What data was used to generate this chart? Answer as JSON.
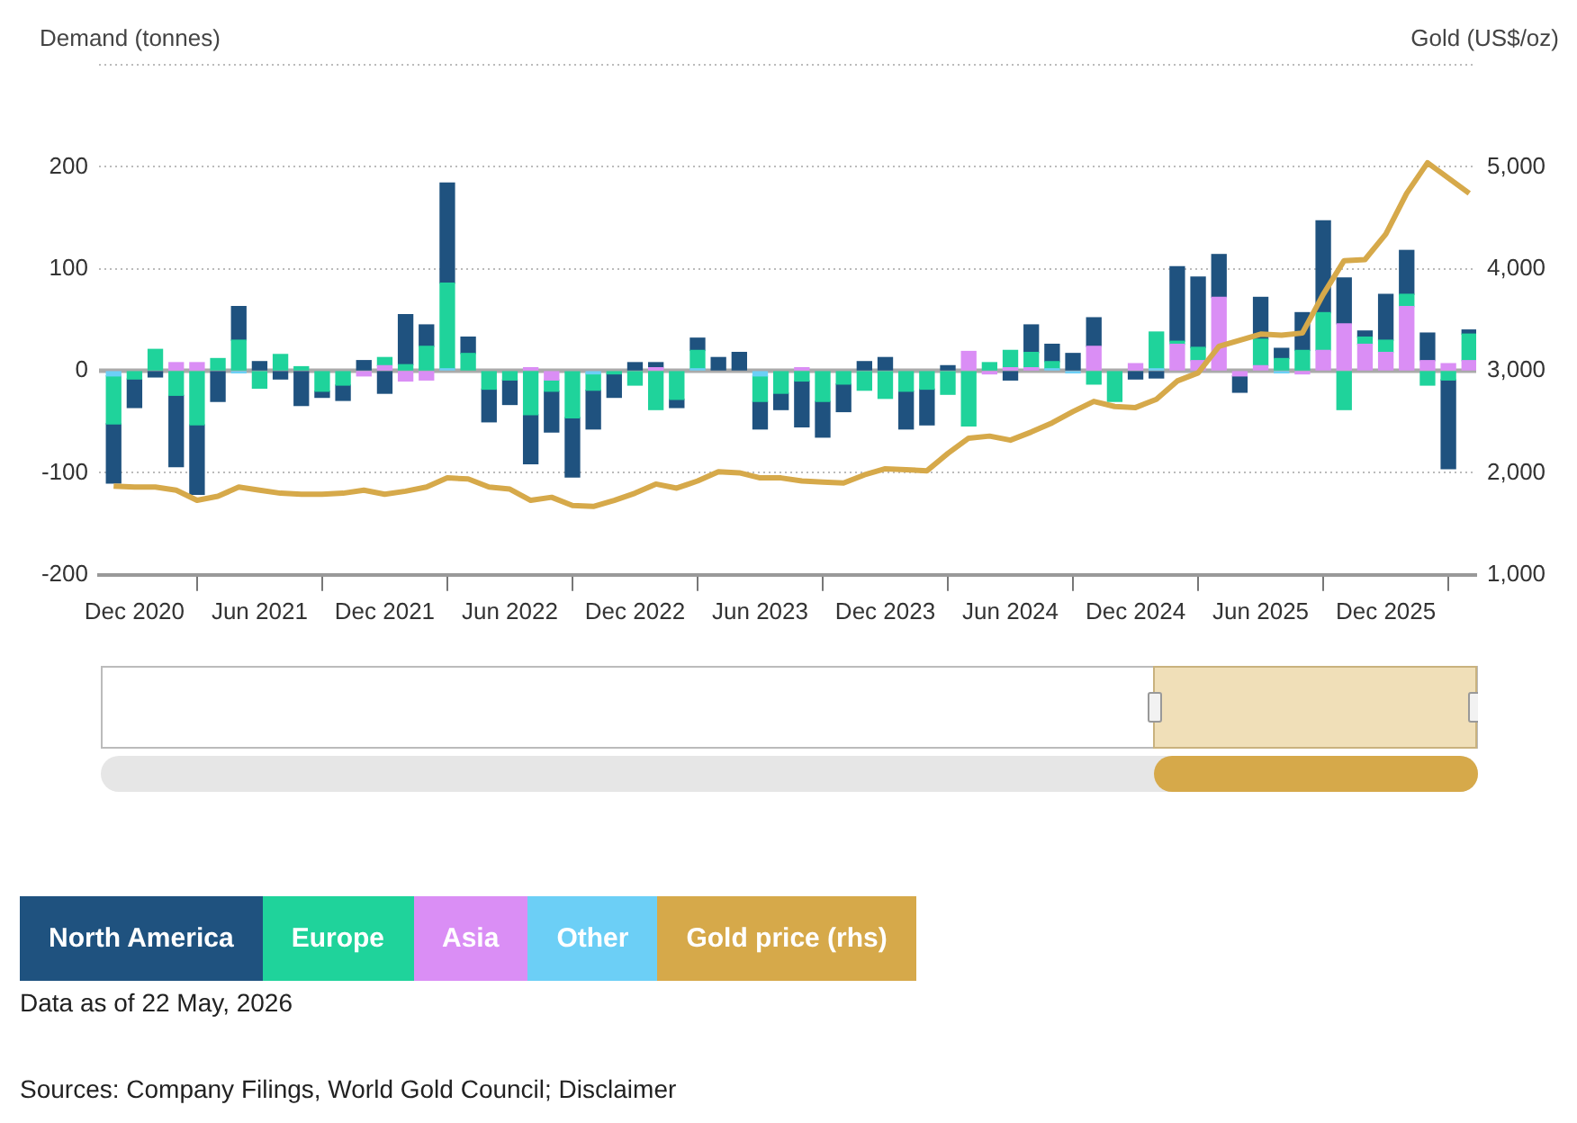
{
  "chart_data": {
    "type": "bar",
    "stacked": true,
    "ylabel": "Demand (tonnes)",
    "y2label": "Gold (US$/oz)",
    "x": [
      "2020-11",
      "2020-12",
      "2021-01",
      "2021-02",
      "2021-03",
      "2021-04",
      "2021-05",
      "2021-06",
      "2021-07",
      "2021-08",
      "2021-09",
      "2021-10",
      "2021-11",
      "2021-12",
      "2022-01",
      "2022-02",
      "2022-03",
      "2022-04",
      "2022-05",
      "2022-06",
      "2022-07",
      "2022-08",
      "2022-09",
      "2022-10",
      "2022-11",
      "2022-12",
      "2023-01",
      "2023-02",
      "2023-03",
      "2023-04",
      "2023-05",
      "2023-06",
      "2023-07",
      "2023-08",
      "2023-09",
      "2023-10",
      "2023-11",
      "2023-12",
      "2024-01",
      "2024-02",
      "2024-03",
      "2024-04",
      "2024-05",
      "2024-06",
      "2024-07",
      "2024-08",
      "2024-09",
      "2024-10",
      "2024-11",
      "2024-12",
      "2025-01",
      "2025-02",
      "2025-03",
      "2025-04",
      "2025-05",
      "2025-06",
      "2025-07",
      "2025-08",
      "2025-09",
      "2025-10",
      "2025-11",
      "2025-12",
      "2026-01",
      "2026-02",
      "2026-03",
      "2026-04"
    ],
    "xlim": [
      "2020-10-10",
      "2026-04-11"
    ],
    "xticks": [
      {
        "value": "2020-12",
        "label": "Dec 2020"
      },
      {
        "value": "2021-06",
        "label": "Jun 2021"
      },
      {
        "value": "2021-12",
        "label": "Dec 2021"
      },
      {
        "value": "2022-06",
        "label": "Jun 2022"
      },
      {
        "value": "2022-12",
        "label": "Dec 2022"
      },
      {
        "value": "2023-06",
        "label": "Jun 2023"
      },
      {
        "value": "2023-12",
        "label": "Dec 2023"
      },
      {
        "value": "2024-06",
        "label": "Jun 2024"
      },
      {
        "value": "2024-12",
        "label": "Dec 2024"
      },
      {
        "value": "2025-06",
        "label": "Jun 2025"
      },
      {
        "value": "2025-12",
        "label": "Dec 2025"
      }
    ],
    "ylim": [
      -200,
      300
    ],
    "yticks": [
      -200,
      -100,
      0,
      100,
      200,
      {
        "value": 300,
        "label": null
      }
    ],
    "y2lim": [
      1000,
      6000
    ],
    "y2ticks": [
      {
        "value": 1000,
        "label": "1,000"
      },
      {
        "value": 2000,
        "label": "2,000"
      },
      {
        "value": 3000,
        "label": "3,000"
      },
      {
        "value": 4000,
        "label": "4,000"
      },
      {
        "value": 5000,
        "label": "5,000"
      },
      {
        "value": 6000,
        "label": null
      }
    ],
    "grid": "y",
    "legend": "bottom",
    "marker": "none",
    "ref_lines": [
      {
        "axis": "y",
        "value": 0,
        "color": "#aaaaaa"
      }
    ],
    "series": [
      {
        "name": "Other",
        "color": "#6ccff6",
        "values": [
          -5,
          0,
          0,
          0,
          0,
          0,
          -2,
          0,
          0,
          0,
          0,
          0,
          0,
          0,
          0,
          0,
          2,
          0,
          0,
          0,
          0,
          0,
          0,
          -3,
          0,
          0,
          0,
          0,
          2,
          0,
          0,
          -5,
          0,
          0,
          0,
          0,
          0,
          0,
          0,
          0,
          0,
          0,
          0,
          0,
          0,
          2,
          -2,
          0,
          0,
          0,
          2,
          0,
          0,
          0,
          0,
          0,
          -2,
          0,
          0,
          0,
          0,
          0,
          0,
          0,
          0,
          0
        ]
      },
      {
        "name": "Asia",
        "color": "#da8ef5",
        "values": [
          0,
          0,
          0,
          8,
          8,
          0,
          0,
          0,
          0,
          0,
          0,
          0,
          -5,
          5,
          -10,
          -9,
          0,
          0,
          0,
          0,
          3,
          -9,
          0,
          0,
          0,
          0,
          3,
          0,
          0,
          0,
          0,
          0,
          0,
          3,
          0,
          0,
          0,
          0,
          0,
          0,
          0,
          19,
          -3,
          3,
          3,
          0,
          0,
          24,
          0,
          7,
          0,
          26,
          10,
          72,
          -5,
          5,
          0,
          -3,
          20,
          46,
          26,
          18,
          63,
          10,
          7,
          10
        ]
      },
      {
        "name": "Europe",
        "color": "#1fd39b",
        "values": [
          -47,
          -8,
          21,
          -24,
          -53,
          12,
          30,
          -17,
          16,
          4,
          -20,
          -14,
          0,
          8,
          6,
          24,
          84,
          17,
          -18,
          -9,
          -43,
          -11,
          -46,
          -16,
          -3,
          -14,
          -38,
          -28,
          18,
          0,
          0,
          -25,
          -22,
          -10,
          -30,
          -13,
          -19,
          -27,
          -20,
          -18,
          -23,
          -54,
          8,
          17,
          15,
          7,
          0,
          -13,
          -30,
          0,
          36,
          3,
          13,
          0,
          0,
          26,
          12,
          20,
          37,
          -38,
          7,
          12,
          12,
          -14,
          -9,
          26
        ]
      },
      {
        "name": "North America",
        "color": "#1f527f",
        "values": [
          -58,
          -28,
          -6,
          -70,
          -68,
          -30,
          33,
          9,
          -8,
          -34,
          -6,
          -15,
          10,
          -22,
          49,
          21,
          98,
          16,
          -32,
          -24,
          -48,
          -40,
          -58,
          -38,
          -23,
          8,
          5,
          -8,
          12,
          13,
          18,
          -27,
          -16,
          -45,
          -35,
          -27,
          9,
          13,
          -37,
          -35,
          5,
          0,
          0,
          -9,
          27,
          17,
          17,
          28,
          0,
          -8,
          -7,
          73,
          69,
          42,
          -16,
          41,
          10,
          37,
          90,
          45,
          6,
          45,
          43,
          27,
          -87,
          4
        ]
      },
      {
        "name": "Gold price (rhs)",
        "type": "line",
        "axis": "y2",
        "color": "#d6a94a",
        "values": [
          1870,
          1860,
          1860,
          1830,
          1730,
          1770,
          1860,
          1830,
          1800,
          1790,
          1790,
          1800,
          1830,
          1790,
          1820,
          1860,
          1950,
          1940,
          1860,
          1840,
          1730,
          1760,
          1680,
          1670,
          1730,
          1800,
          1890,
          1850,
          1920,
          2010,
          2000,
          1950,
          1950,
          1920,
          1910,
          1900,
          1980,
          2040,
          2030,
          2020,
          2190,
          2340,
          2360,
          2320,
          2400,
          2490,
          2600,
          2700,
          2650,
          2640,
          2720,
          2900,
          2980,
          3240,
          3300,
          3360,
          3350,
          3370,
          3750,
          4080,
          4090,
          4340,
          4740,
          5040,
          4890,
          4740
        ]
      }
    ],
    "annotations": [
      "Data as of 22 May, 2026",
      "Sources: Company Filings, World Gold Council; Disclaimer"
    ]
  }
}
